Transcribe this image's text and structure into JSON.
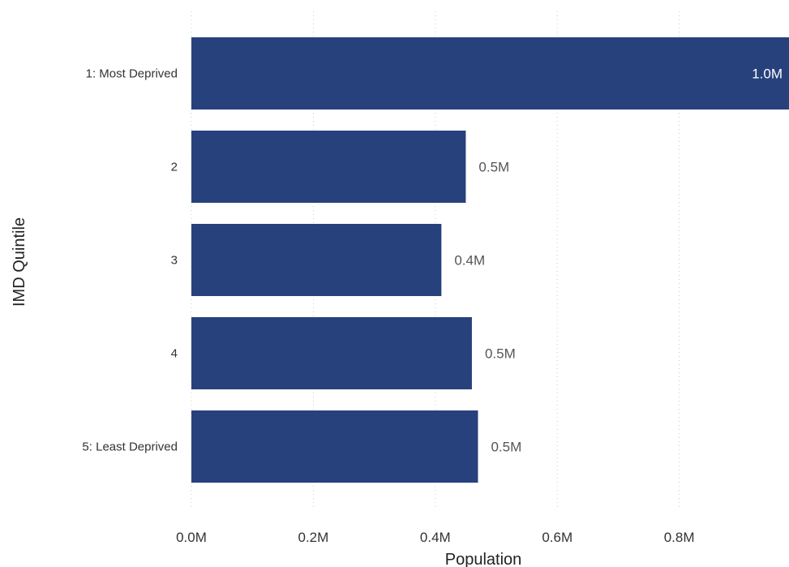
{
  "chart_data": {
    "type": "bar",
    "orientation": "horizontal",
    "categories": [
      "1: Most Deprived",
      "2",
      "3",
      "4",
      "5: Least Deprived"
    ],
    "values": [
      0.98,
      0.45,
      0.41,
      0.46,
      0.47
    ],
    "data_labels": [
      "1.0M",
      "0.5M",
      "0.4M",
      "0.5M",
      "0.5M"
    ],
    "xlabel": "Population",
    "ylabel": "IMD Quintile",
    "xlim": [
      0,
      0.98
    ],
    "xticks": [
      0,
      0.2,
      0.4,
      0.6,
      0.8
    ],
    "xtick_labels": [
      "0.0M",
      "0.2M",
      "0.4M",
      "0.6M",
      "0.8M"
    ],
    "grid": "vertical dotted",
    "bar_color": "#27417C",
    "legend": "none"
  }
}
